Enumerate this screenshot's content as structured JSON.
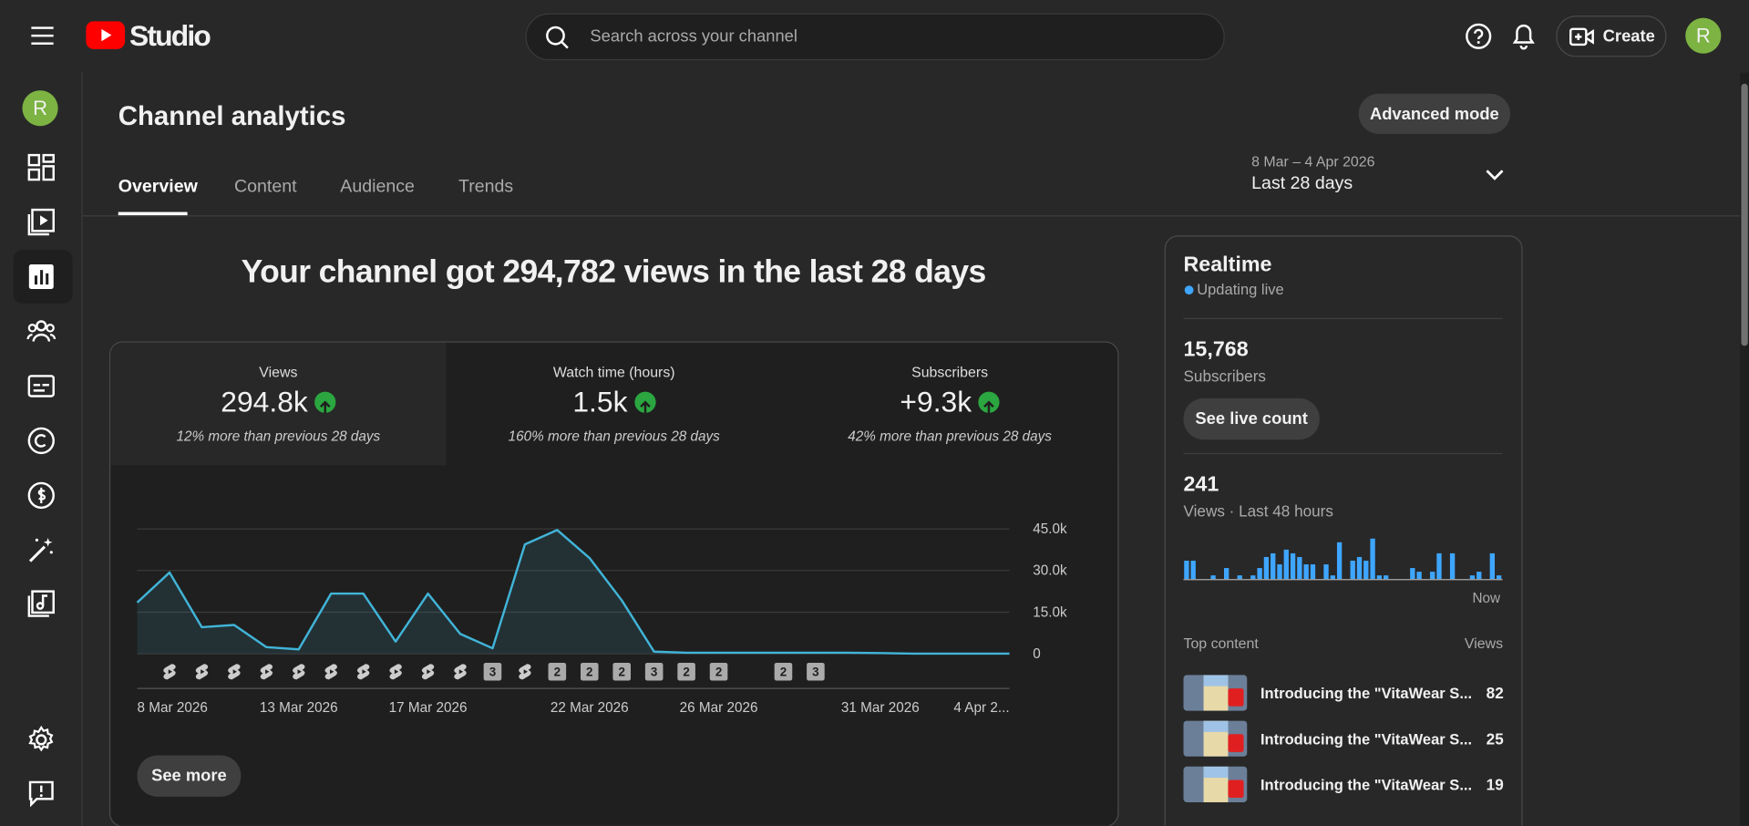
{
  "header": {
    "logo_text": "Studio",
    "search_placeholder": "Search across your channel",
    "create": "Create",
    "avatar": "R"
  },
  "sidebar": {
    "avatar": "R"
  },
  "page": {
    "title": "Channel analytics",
    "advanced_mode": "Advanced mode",
    "tabs": [
      "Overview",
      "Content",
      "Audience",
      "Trends"
    ],
    "date_range": "8 Mar – 4 Apr 2026",
    "period": "Last 28 days"
  },
  "headline": "Your channel got 294,782 views in the last 28 days",
  "metrics": [
    {
      "label": "Views",
      "value": "294.8k",
      "note": "12% more than previous 28 days"
    },
    {
      "label": "Watch time (hours)",
      "value": "1.5k",
      "note": "160% more than previous 28 days"
    },
    {
      "label": "Subscribers",
      "value": "+9.3k",
      "note": "42% more than previous 28 days"
    }
  ],
  "chart_data": [
    {
      "type": "line",
      "categories": [
        "8 Mar 2026",
        null,
        null,
        null,
        null,
        "13 Mar 2026",
        null,
        null,
        null,
        "17 Mar 2026",
        null,
        null,
        null,
        null,
        "22 Mar 2026",
        null,
        null,
        null,
        "26 Mar 2026",
        null,
        null,
        null,
        null,
        "31 Mar 2026",
        null,
        null,
        null,
        "4 Apr 2..."
      ],
      "values": [
        18500,
        29300,
        9600,
        10400,
        2400,
        1600,
        21700,
        21700,
        4400,
        21700,
        7200,
        2000,
        39400,
        44600,
        34500,
        19300,
        800,
        400,
        400,
        400,
        400,
        400,
        400,
        300,
        100,
        100,
        100,
        100
      ],
      "color": "#41b4d8",
      "ylim": [
        0,
        45000
      ],
      "yticks": [
        0,
        {
          "value": 15000,
          "label": "15.0k"
        },
        {
          "value": 30000,
          "label": "30.0k"
        },
        {
          "value": 45000,
          "label": "45.0k"
        }
      ],
      "grid": true,
      "markers": [
        null,
        1,
        1,
        1,
        1,
        1,
        1,
        1,
        1,
        1,
        1,
        3,
        1,
        2,
        2,
        2,
        3,
        2,
        2,
        null,
        2,
        3,
        null,
        null,
        null,
        null,
        null,
        null
      ]
    },
    {
      "type": "bar",
      "values": [
        5,
        5,
        0,
        0,
        1,
        0,
        3,
        0,
        1,
        0,
        1,
        3,
        6,
        7,
        4,
        8,
        7,
        6,
        4,
        4,
        0,
        4,
        1,
        10,
        0,
        5,
        6,
        5,
        11,
        1,
        1,
        0,
        0,
        0,
        3,
        2,
        0,
        2,
        7,
        0,
        7,
        0,
        0,
        1,
        2,
        0,
        7,
        1
      ],
      "color": "#3ea6ff"
    }
  ],
  "see_more": "See more",
  "realtime": {
    "title": "Realtime",
    "status": "Updating live",
    "subscribers": "15,768",
    "subscribers_label": "Subscribers",
    "see_live_count": "See live count",
    "views": "241",
    "views_label": "Views · Last 48 hours",
    "now": "Now",
    "top_content": "Top content",
    "views_column": "Views",
    "items": [
      {
        "title": "Introducing the \"VitaWear S...",
        "views": 82
      },
      {
        "title": "Introducing the \"VitaWear S...",
        "views": 25
      },
      {
        "title": "Introducing the \"VitaWear S...",
        "views": 19
      }
    ]
  }
}
